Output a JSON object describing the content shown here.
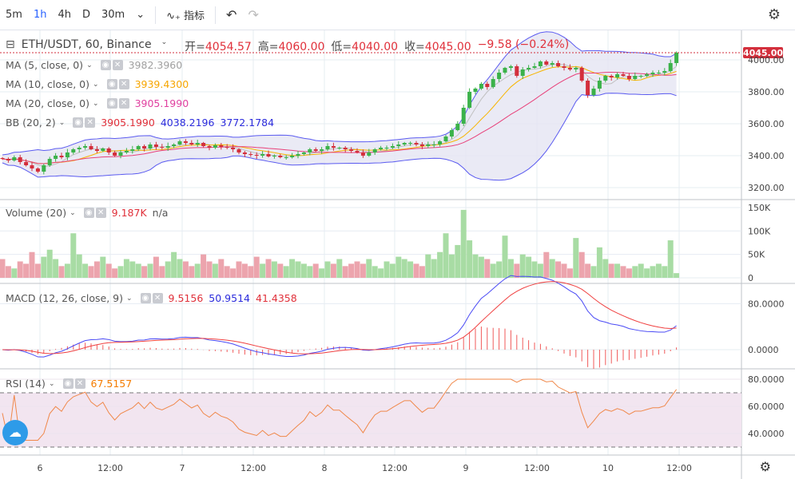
{
  "toolbar": {
    "intervals": [
      "5m",
      "1h",
      "4h",
      "D",
      "30m"
    ],
    "active_interval": "1h",
    "indicators_label": "指标",
    "undo_icon": "undo-icon",
    "redo_icon": "redo-icon",
    "settings_icon": "gear-icon"
  },
  "symbol": {
    "title": "ETH/USDT, 60, Binance",
    "open_label": "开=",
    "open": "4054.57",
    "high_label": "高=",
    "high": "4060.00",
    "low_label": "低=",
    "low": "4040.00",
    "close_label": "收=",
    "close": "4045.00",
    "change": "−9.58 (−0.24%)",
    "last_price_label": "4045.00"
  },
  "studies": {
    "ma5": {
      "label": "MA (5, close, 0)",
      "value": "3982.3960",
      "color": "#a0a0a0"
    },
    "ma10": {
      "label": "MA (10, close, 0)",
      "value": "3939.4300",
      "color": "#f7a600"
    },
    "ma20": {
      "label": "MA (20, close, 0)",
      "value": "3905.1990",
      "color": "#e040a0"
    },
    "bb": {
      "label": "BB (20, 2)",
      "basis": "3905.1990",
      "upper": "4038.2196",
      "lower": "3772.1784"
    },
    "volume": {
      "label": "Volume (20)",
      "value": "9.187K",
      "ma": "n/a"
    },
    "macd": {
      "label": "MACD (12, 26, close, 9)",
      "hist": "9.5156",
      "macd": "50.9514",
      "signal": "41.4358"
    },
    "rsi": {
      "label": "RSI (14)",
      "value": "67.5157"
    }
  },
  "colors": {
    "up": "#3bb24a",
    "down": "#d32f3c",
    "vol_up": "#a8dca4",
    "vol_down": "#eca4ad",
    "bb_fill": "#e5e5f3",
    "rsi_fill": "#f2e5f0"
  },
  "chart_data": {
    "type": "candlestick",
    "price_axis": [
      "4000.00",
      "3800.00",
      "3600.00",
      "3400.00",
      "3200.00"
    ],
    "volume_axis": [
      "150K",
      "100K",
      "50K",
      "0"
    ],
    "macd_axis": [
      "80.0000",
      "0.0000"
    ],
    "rsi_axis": [
      "80.0000",
      "60.0000",
      "40.0000"
    ],
    "time_axis": [
      "6",
      "12:00",
      "7",
      "12:00",
      "8",
      "12:00",
      "9",
      "12:00",
      "10",
      "12:00"
    ],
    "closes": [
      3380,
      3370,
      3390,
      3360,
      3340,
      3320,
      3300,
      3340,
      3380,
      3400,
      3390,
      3420,
      3440,
      3450,
      3460,
      3440,
      3430,
      3445,
      3420,
      3400,
      3420,
      3430,
      3440,
      3460,
      3445,
      3470,
      3455,
      3450,
      3460,
      3470,
      3490,
      3480,
      3470,
      3480,
      3460,
      3450,
      3465,
      3455,
      3450,
      3440,
      3420,
      3410,
      3405,
      3400,
      3410,
      3395,
      3400,
      3390,
      3390,
      3400,
      3410,
      3420,
      3440,
      3430,
      3440,
      3460,
      3450,
      3450,
      3440,
      3430,
      3420,
      3400,
      3420,
      3440,
      3450,
      3450,
      3460,
      3470,
      3480,
      3480,
      3470,
      3460,
      3470,
      3470,
      3490,
      3520,
      3560,
      3600,
      3700,
      3800,
      3820,
      3850,
      3830,
      3880,
      3920,
      3950,
      3960,
      3900,
      3940,
      3950,
      3960,
      3990,
      3970,
      3980,
      3960,
      3950,
      3940,
      3950,
      3870,
      3780,
      3820,
      3870,
      3900,
      3890,
      3910,
      3900,
      3880,
      3900,
      3900,
      3910,
      3920,
      3920,
      3930,
      3980,
      4045
    ],
    "volumes_k": [
      40,
      25,
      20,
      35,
      30,
      55,
      30,
      45,
      60,
      40,
      25,
      30,
      95,
      50,
      30,
      25,
      35,
      45,
      30,
      20,
      25,
      40,
      35,
      30,
      25,
      30,
      45,
      25,
      35,
      55,
      40,
      35,
      25,
      30,
      50,
      35,
      30,
      40,
      25,
      20,
      35,
      30,
      25,
      45,
      30,
      40,
      35,
      30,
      25,
      40,
      35,
      30,
      25,
      30,
      20,
      35,
      30,
      40,
      25,
      30,
      35,
      30,
      40,
      25,
      20,
      35,
      30,
      45,
      40,
      35,
      30,
      25,
      50,
      40,
      55,
      95,
      50,
      70,
      145,
      80,
      50,
      45,
      40,
      30,
      35,
      90,
      40,
      30,
      50,
      45,
      35,
      30,
      55,
      40,
      35,
      30,
      20,
      85,
      55,
      30,
      25,
      65,
      40,
      30,
      30,
      25,
      20,
      25,
      30,
      20,
      25,
      30,
      25,
      80,
      10
    ]
  }
}
